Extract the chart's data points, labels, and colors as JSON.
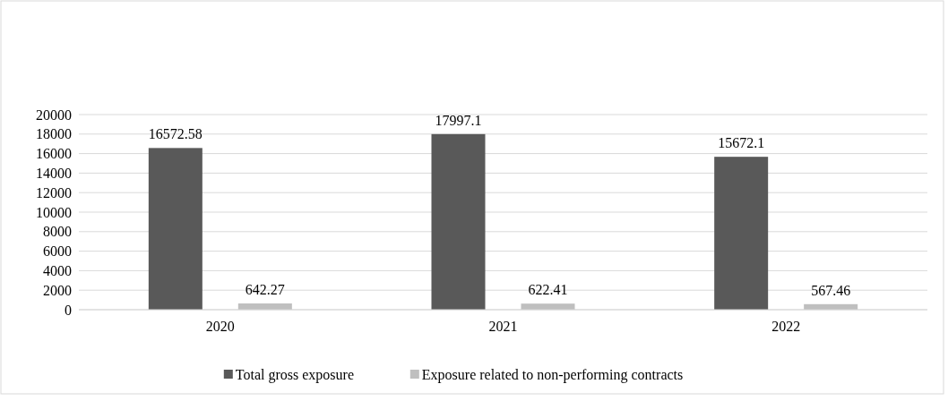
{
  "chart_data": {
    "type": "bar",
    "categories": [
      "2020",
      "2021",
      "2022"
    ],
    "series": [
      {
        "name": "Total gross exposure",
        "color": "#595959",
        "values": [
          16572.58,
          17997.1,
          15672.1
        ]
      },
      {
        "name": "Exposure related to non-performing contracts",
        "color": "#bfbfbf",
        "values": [
          642.27,
          622.41,
          567.46
        ]
      }
    ],
    "ylim": [
      0,
      20000
    ],
    "yticks": [
      0,
      2000,
      4000,
      6000,
      8000,
      10000,
      12000,
      14000,
      16000,
      18000,
      20000
    ],
    "grid": "y",
    "legend": "bottom",
    "data_labels": true
  }
}
